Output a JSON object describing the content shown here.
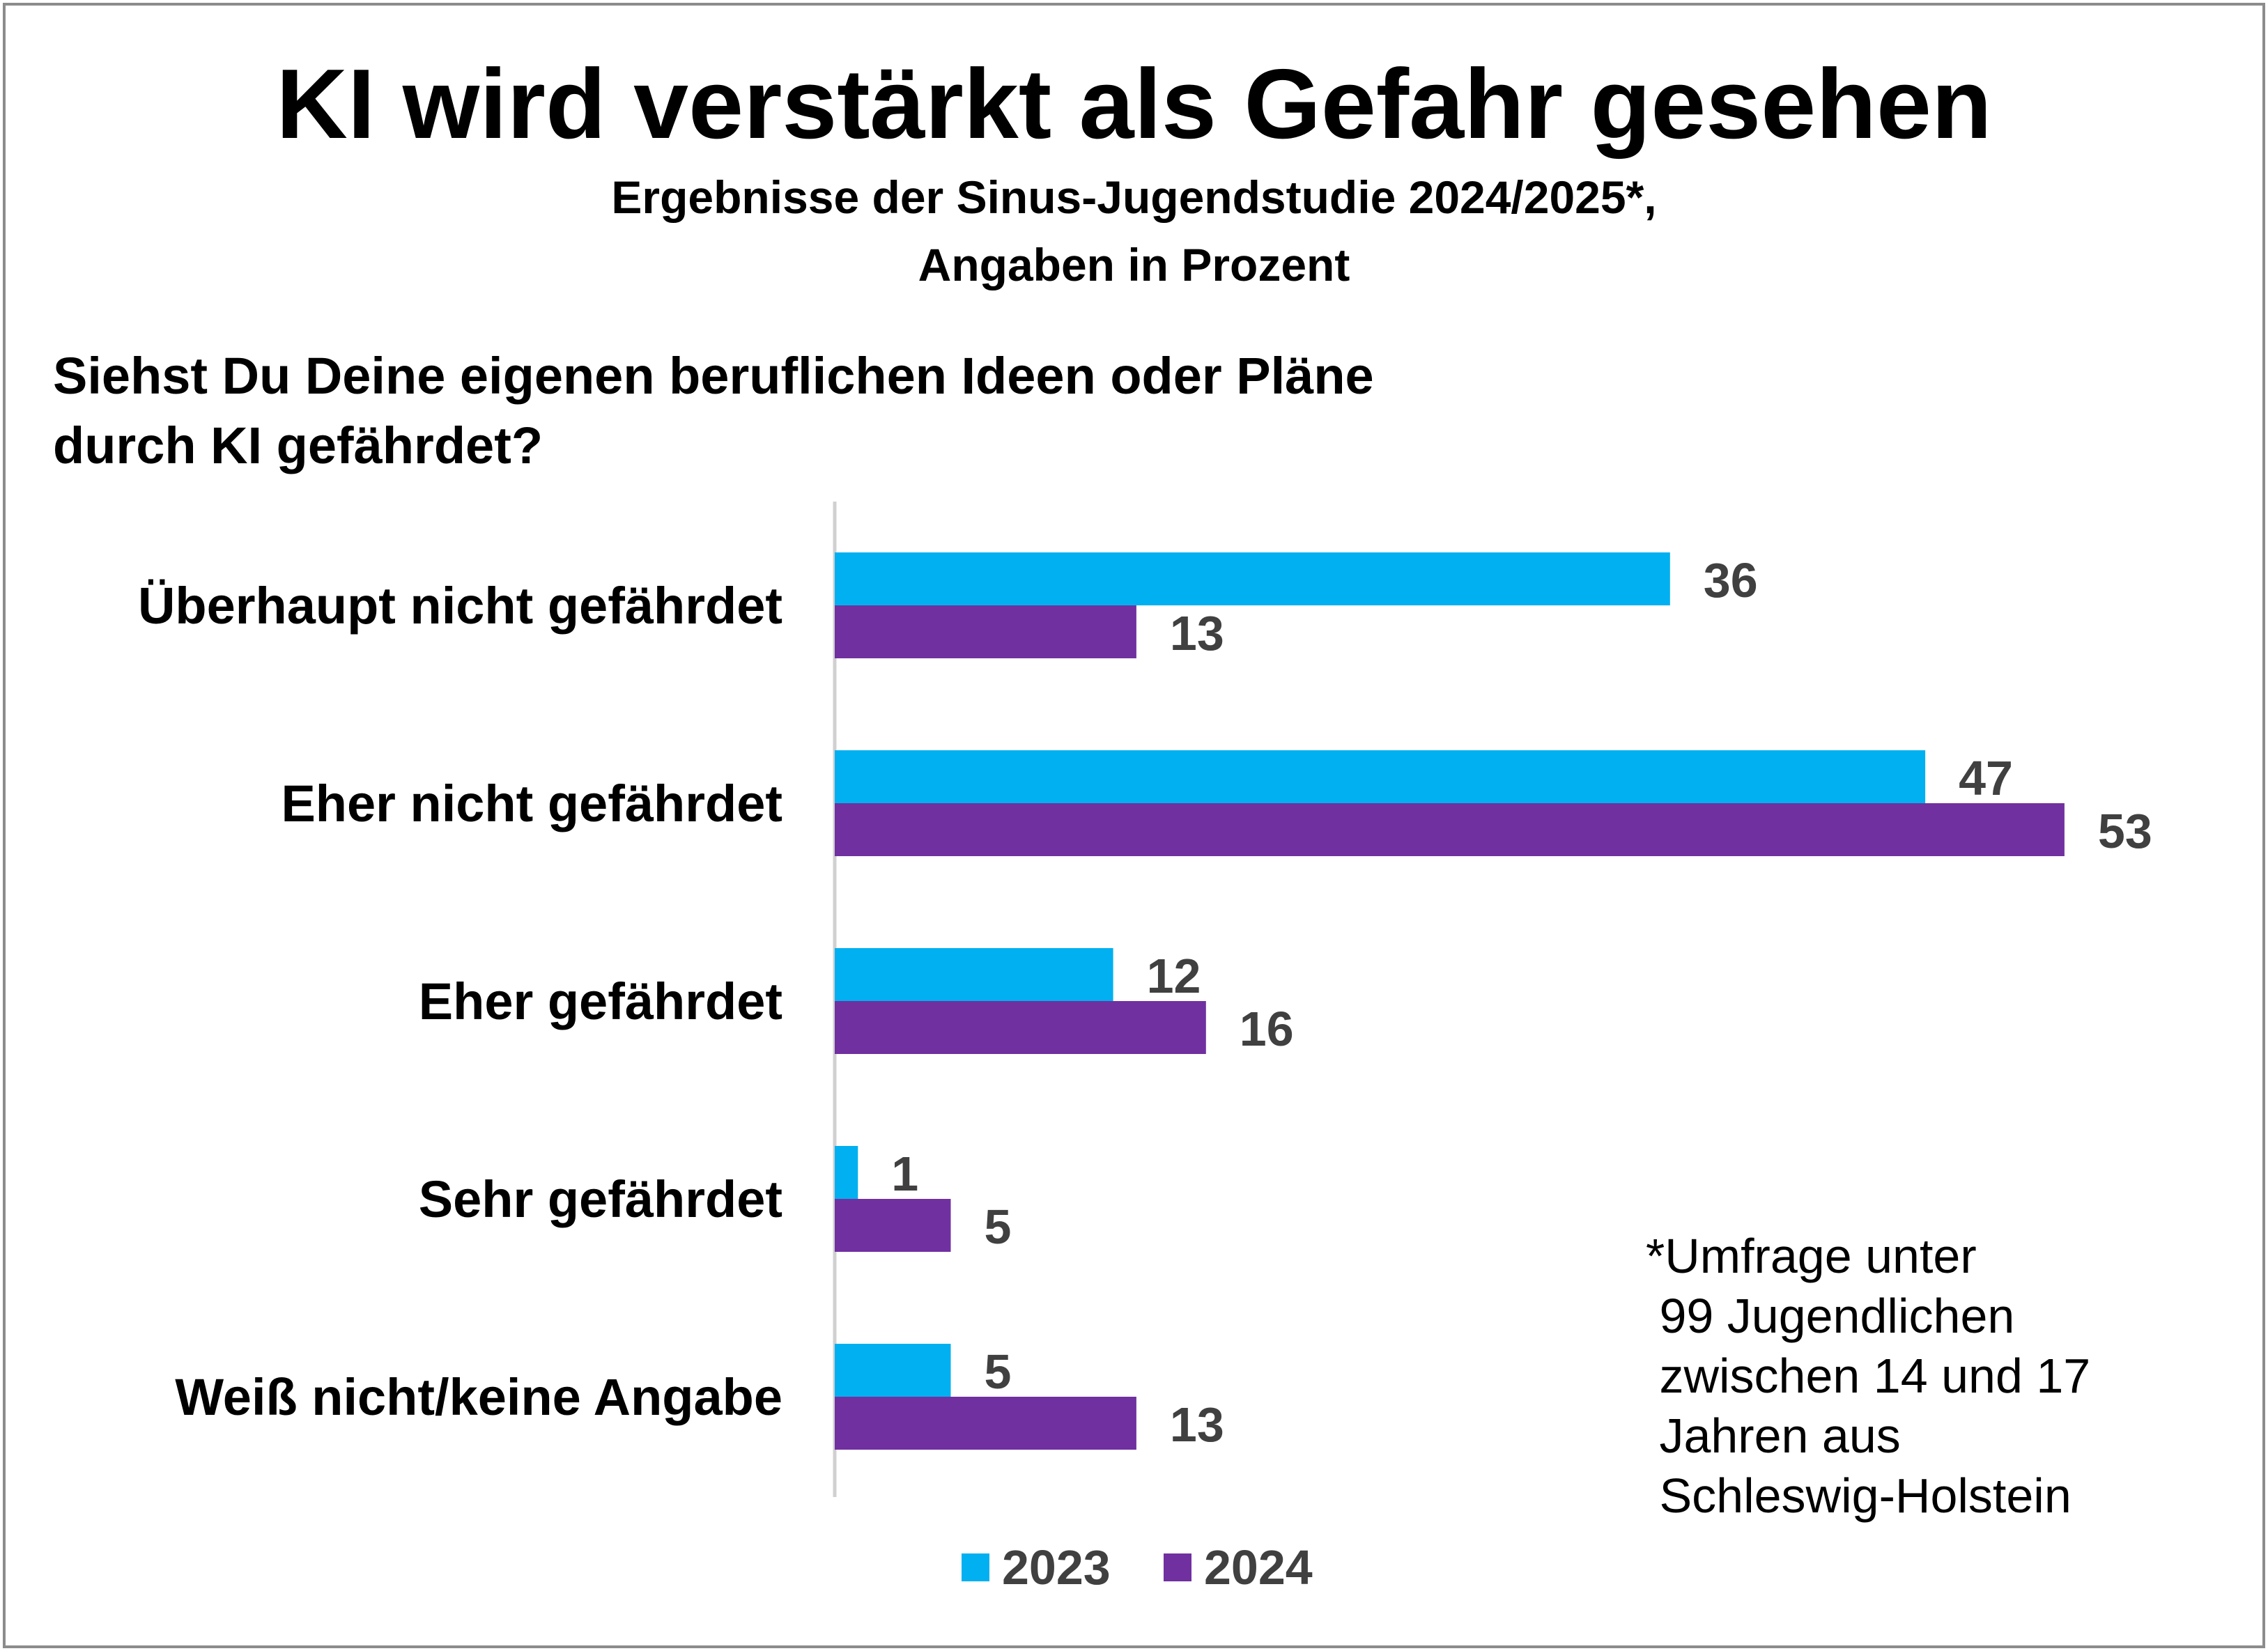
{
  "chart_data": {
    "type": "bar",
    "orientation": "horizontal",
    "title": "KI wird verstärkt als Gefahr gesehen",
    "subtitle": [
      "Ergebnisse der Sinus-Jugendstudie 2024/2025*,",
      "Angaben in Prozent"
    ],
    "question": [
      "Siehst Du Deine eigenen beruflichen Ideen oder Pläne",
      "durch KI gefährdet?"
    ],
    "categories": [
      "Überhaupt nicht gefährdet",
      "Eher nicht gefährdet",
      "Eher gefährdet",
      "Sehr gefährdet",
      "Weiß nicht/keine Angabe"
    ],
    "series": [
      {
        "name": "2023",
        "color": "#00B0F0",
        "values": [
          36,
          47,
          12,
          1,
          5
        ]
      },
      {
        "name": "2024",
        "color": "#7030A0",
        "values": [
          13,
          53,
          16,
          5,
          13
        ]
      }
    ],
    "xlim": [
      0,
      60
    ],
    "grid": false,
    "data_labels": true,
    "legend_placement": "bottom",
    "footnote": [
      "*Umfrage unter",
      " 99 Jugendlichen",
      " zwischen 14 und 17",
      " Jahren aus",
      " Schleswig-Holstein"
    ]
  }
}
